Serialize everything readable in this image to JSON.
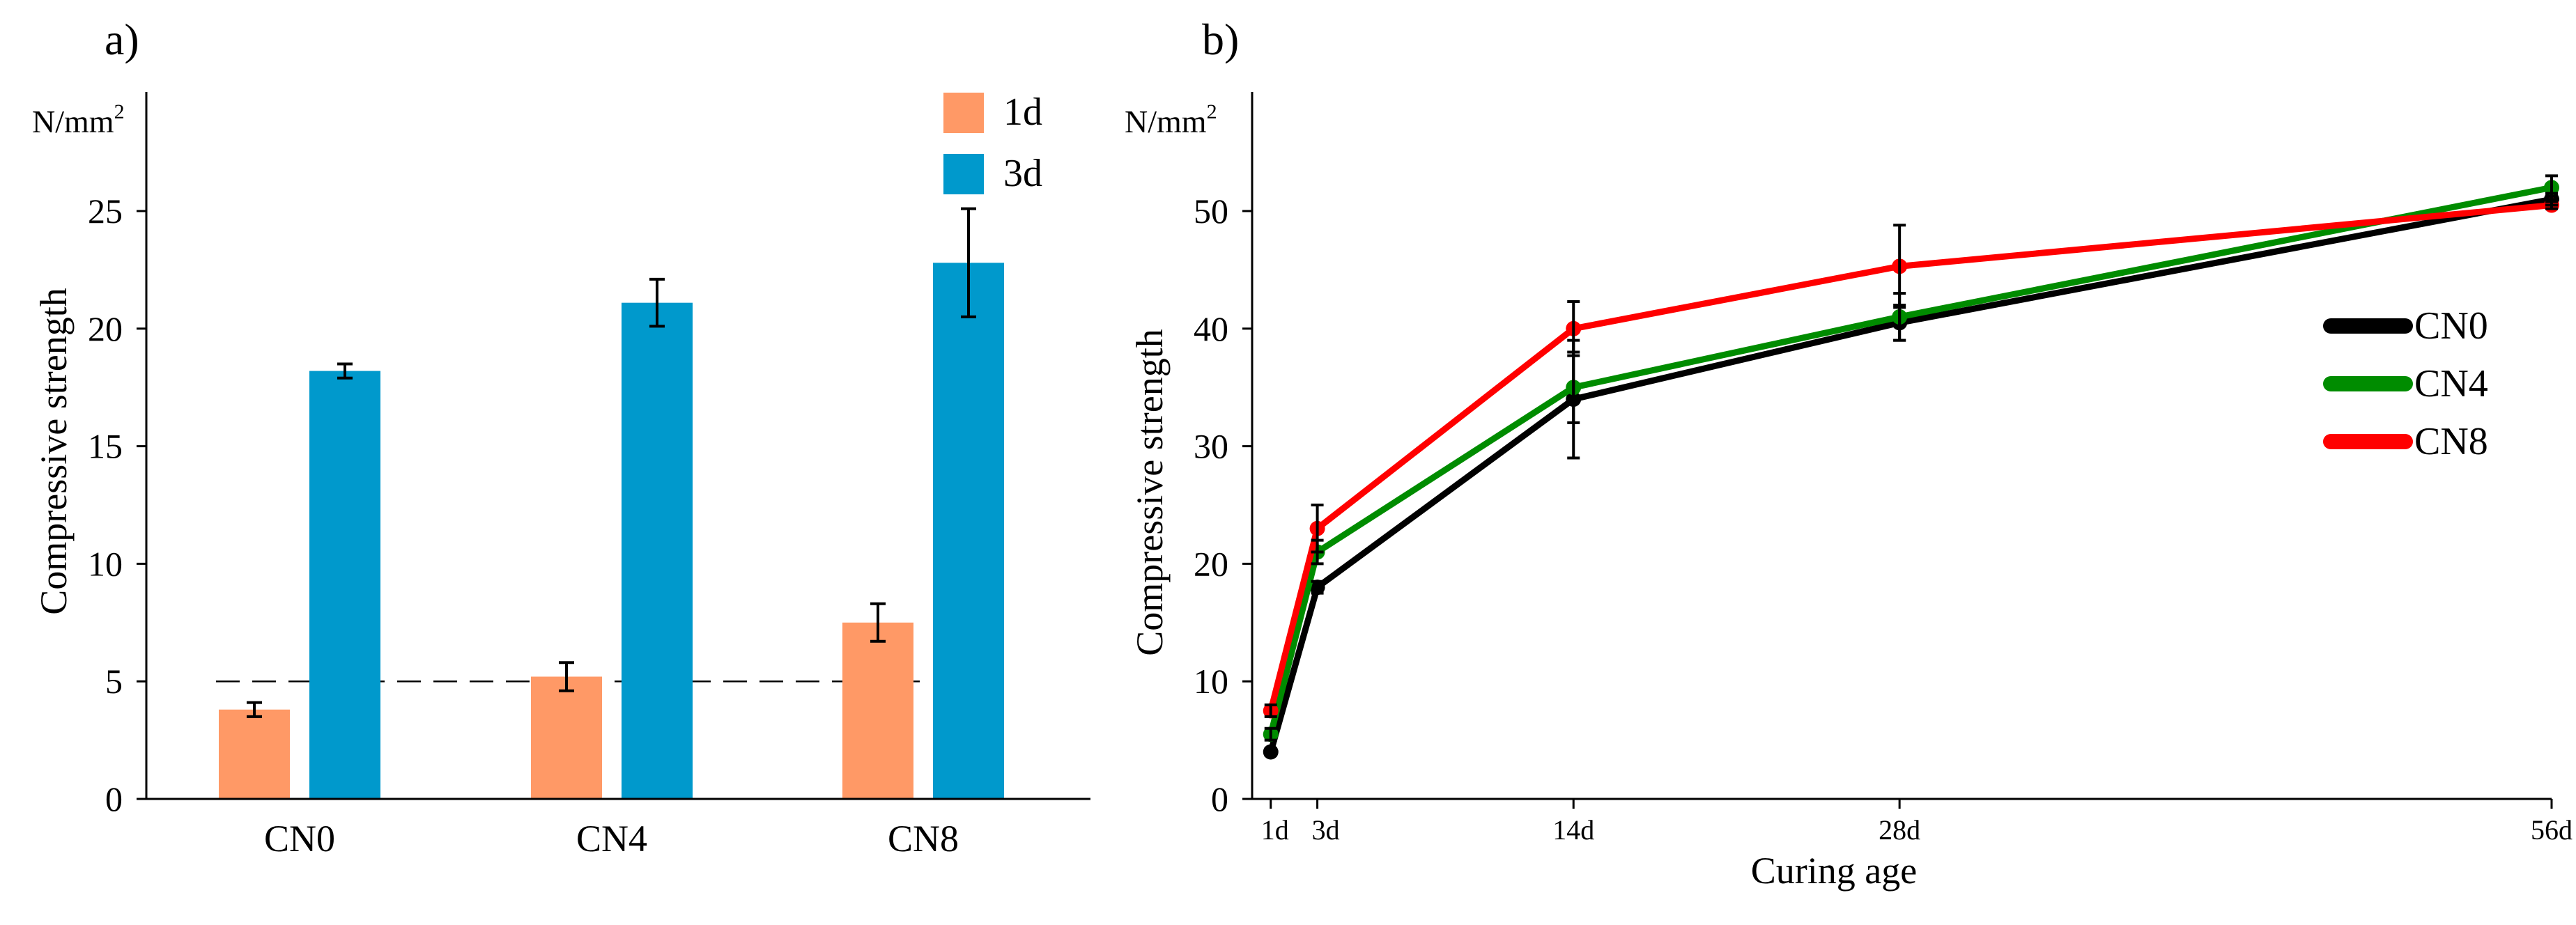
{
  "chart_data": [
    {
      "type": "bar",
      "panel_label": "a)",
      "unit_label": "N/mm",
      "unit_superscript": "2",
      "ylabel": "Compressive strength",
      "xlabel": "",
      "ylim": [
        0,
        30
      ],
      "yticks": [
        0,
        5,
        10,
        15,
        20,
        25
      ],
      "categories": [
        "CN0",
        "CN4",
        "CN8"
      ],
      "series": [
        {
          "name": "1d",
          "color": "#FF9966",
          "values": [
            3.8,
            5.2,
            7.5
          ],
          "errors": [
            0.3,
            0.6,
            0.8
          ]
        },
        {
          "name": "3d",
          "color": "#0099CC",
          "values": [
            18.2,
            21.1,
            22.8
          ],
          "errors": [
            0.3,
            1.0,
            2.3
          ]
        }
      ],
      "reference_line": {
        "y": 5,
        "style": "dashed"
      },
      "legend_position": "top-right"
    },
    {
      "type": "line",
      "panel_label": "b)",
      "unit_label": "N/mm",
      "unit_superscript": "2",
      "ylabel": "Compressive strength",
      "xlabel": "Curing age",
      "xlim": [
        0.2,
        56
      ],
      "ylim": [
        0,
        60
      ],
      "yticks": [
        0,
        10,
        20,
        30,
        40,
        50
      ],
      "x": [
        1,
        3,
        14,
        28,
        56
      ],
      "xtick_labels": [
        "1d",
        "3d",
        "14d",
        "28d",
        "56d"
      ],
      "series": [
        {
          "name": "CN0",
          "color": "#000000",
          "values": [
            4.0,
            18.0,
            34.0,
            40.5,
            51.0
          ],
          "errors": [
            0.3,
            0.5,
            5.0,
            1.5,
            0.5
          ]
        },
        {
          "name": "CN4",
          "color": "#008C00",
          "values": [
            5.5,
            21.0,
            35.0,
            41.0,
            52.0
          ],
          "errors": [
            0.5,
            1.0,
            3.0,
            2.0,
            1.0
          ]
        },
        {
          "name": "CN8",
          "color": "#FF0000",
          "values": [
            7.5,
            23.0,
            40.0,
            45.3,
            50.5
          ],
          "errors": [
            0.5,
            2.0,
            2.3,
            3.5,
            0.3
          ]
        }
      ],
      "legend_position": "center-right"
    }
  ]
}
